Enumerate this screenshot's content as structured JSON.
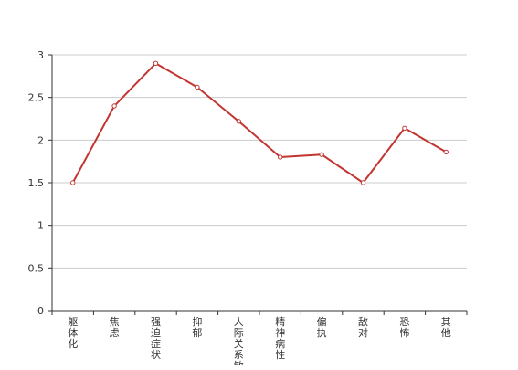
{
  "chart_data": {
    "type": "line",
    "title": "",
    "xlabel": "",
    "ylabel": "",
    "categories": [
      "躯体化",
      "焦虑",
      "强迫症状",
      "抑郁",
      "人际关系敏感",
      "精神病性",
      "偏执",
      "敌对",
      "恐怖",
      "其他"
    ],
    "series": [
      {
        "values": [
          1.5,
          2.4,
          2.9,
          2.62,
          2.22,
          1.8,
          1.83,
          1.5,
          2.14,
          1.86
        ]
      }
    ],
    "ylim": [
      0,
      3
    ],
    "yticks": [
      "0",
      "0.5",
      "1",
      "1.5",
      "2",
      "2.5",
      "3"
    ],
    "grid": "horizontal",
    "legend": "none",
    "colors": {
      "line": "#c23531",
      "grid": "#cccccc",
      "axis": "#333333",
      "marker_fill": "#ffffff"
    }
  }
}
